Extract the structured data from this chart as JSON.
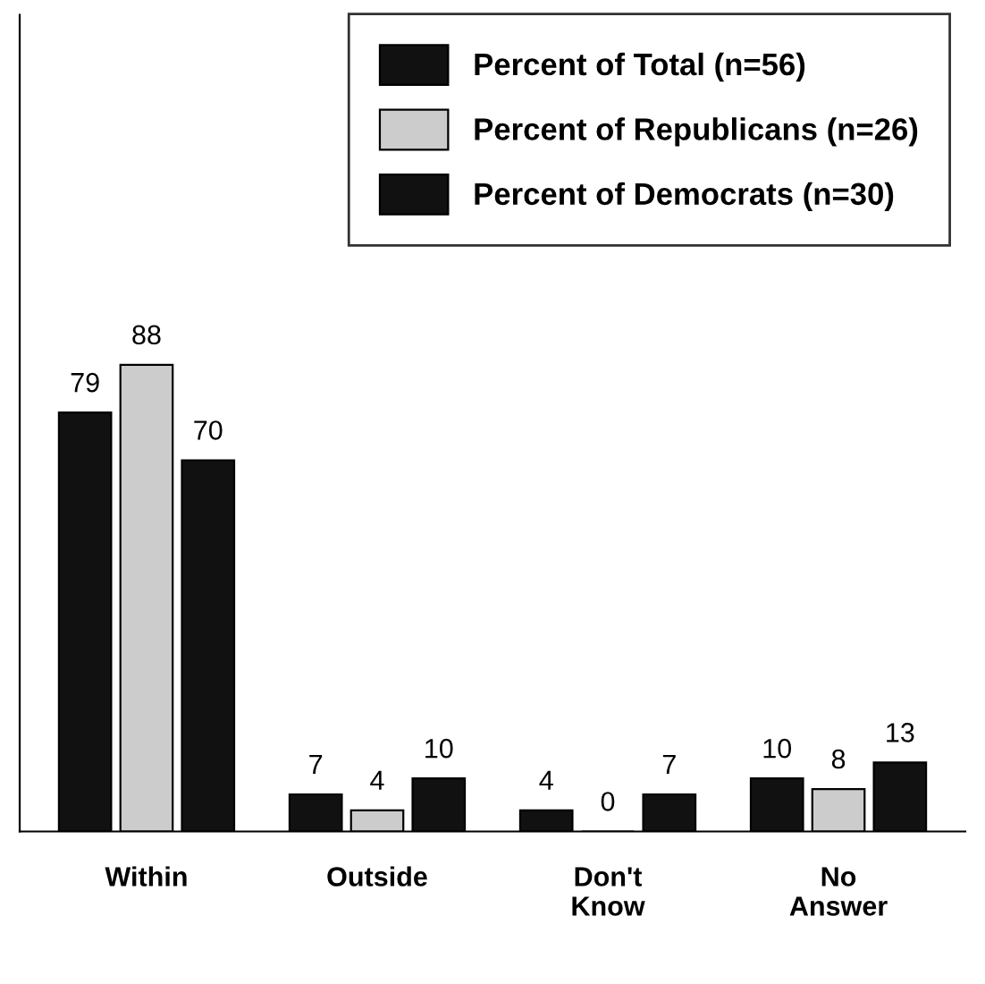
{
  "chart_data": {
    "type": "bar",
    "categories": [
      "Within",
      "Outside",
      "Don't\nKnow",
      "No\nAnswer"
    ],
    "series": [
      {
        "name": "Percent of Total (n=56)",
        "color": "#111111",
        "values": [
          79,
          7,
          4,
          10
        ]
      },
      {
        "name": "Percent of Republicans (n=26)",
        "color": "#cccccc",
        "values": [
          88,
          4,
          0,
          8
        ]
      },
      {
        "name": "Percent of Democrats (n=30)",
        "color": "#111111",
        "values": [
          70,
          10,
          7,
          13
        ]
      }
    ],
    "data_labels": true,
    "legend": "top right",
    "grid": false
  }
}
